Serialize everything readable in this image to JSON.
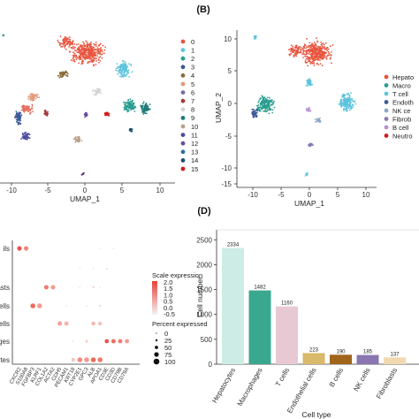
{
  "panel_letters": {
    "b": "(B)",
    "d": "(D)"
  },
  "chart_data": [
    {
      "type": "scatter",
      "title": "",
      "xlabel": "UMAP_1",
      "ylabel": "",
      "x_ticks": [
        "-10",
        "-5",
        "0",
        "5",
        "10"
      ],
      "y_ticks": [],
      "legend_title": "",
      "legend": [
        "0",
        "1",
        "2",
        "3",
        "4",
        "5",
        "6",
        "7",
        "8",
        "9",
        "10",
        "11",
        "12",
        "13",
        "14",
        "15"
      ],
      "colors": [
        "#e8553f",
        "#5ec4dc",
        "#2a9d8f",
        "#3d5a98",
        "#8a6a3b",
        "#e39a7a",
        "#7a6aa8",
        "#a13b3b",
        "#d3d3d3",
        "#1f7a7a",
        "#b9a08a",
        "#4a4aa0",
        "#6a4c9c",
        "#2e6f9e",
        "#1b4f72",
        "#d01c1c"
      ]
    },
    {
      "type": "scatter",
      "title": "",
      "xlabel": "UMAP_1",
      "ylabel": "UMAP_2",
      "x_ticks": [
        "-10",
        "-5",
        "0",
        "5",
        "10"
      ],
      "y_ticks": [
        "10",
        "5",
        "0",
        "-5",
        "-10",
        "-15"
      ],
      "legend": [
        "Hepato",
        "Macro",
        "T cell",
        "Endoth",
        "NK ce",
        "Fibrob",
        "B cell",
        "Neutro"
      ],
      "colors": [
        "#e8553f",
        "#2a9d8f",
        "#5ec4dc",
        "#3d5a98",
        "#8fa8c8",
        "#8a7ab0",
        "#b58fd0",
        "#d01c1c"
      ]
    },
    {
      "type": "scatter",
      "title": "",
      "x_categories": [
        "CXCR2",
        "S100A8",
        "FGFBP3",
        "KLRF1",
        "COL1A2",
        "ACTA2",
        "CDH5",
        "PECAM1",
        "KRT18",
        "CYP2E1",
        "GPC3",
        "ALB",
        "APOA1",
        "CD3E",
        "CD3D",
        "CD79B",
        "CD79A"
      ],
      "y_categories": [
        "Neutrophils",
        "",
        "Fibroblasts",
        "B cells",
        "NK cells",
        "Macrophages",
        "Hepatocytes"
      ],
      "y_labels_visible": [
        "ils",
        "",
        "asts",
        "ells",
        "ells",
        "ages",
        "ytes"
      ],
      "color_legend_title": "Scale expression",
      "color_ticks": [
        "2.0",
        "1.5",
        "1.0",
        "0.5",
        "0.0",
        "-0.5"
      ],
      "size_legend_title": "Percent expressed",
      "size_ticks": [
        "0",
        "25",
        "50",
        "75",
        "100"
      ]
    },
    {
      "type": "bar",
      "title": "",
      "categories": [
        "Hepatocytes",
        "Macrophages",
        "T cells",
        "Endothelial cells",
        "B cells",
        "NK cells",
        "Fibroblasts"
      ],
      "values": [
        2334,
        1482,
        1160,
        223,
        190,
        185,
        137
      ],
      "value_labels": [
        "2334",
        "1482",
        "1160",
        "223",
        "190",
        "185",
        "137"
      ],
      "colors": [
        "#cdece6",
        "#3aa88e",
        "#e8c9d3",
        "#d9b96a",
        "#a0641a",
        "#8a76b0",
        "#f0d9b0"
      ],
      "xlabel": "Cell type",
      "ylabel": "Cell number",
      "ylim": [
        0,
        2700
      ],
      "y_ticks": [
        0,
        500,
        1000,
        1500,
        2000,
        2500
      ]
    }
  ]
}
